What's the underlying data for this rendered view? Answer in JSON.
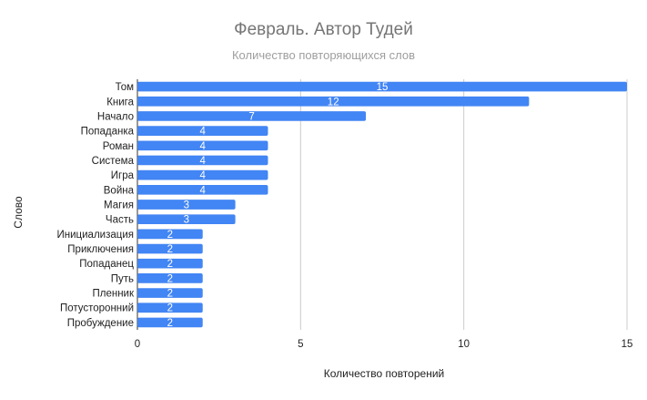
{
  "chart_data": {
    "type": "bar",
    "orientation": "horizontal",
    "title": "Февраль. Автор Тудей",
    "subtitle": "Количество повторяющихся слов",
    "xlabel": "Количество повторений",
    "ylabel": "Слово",
    "categories": [
      "Том",
      "Книга",
      "Начало",
      "Попаданка",
      "Роман",
      "Система",
      "Игра",
      "Война",
      "Магия",
      "Часть",
      "Инициализация",
      "Приключения",
      "Попаданец",
      "Путь",
      "Пленник",
      "Потусторонний",
      "Пробуждение"
    ],
    "values": [
      15,
      12,
      7,
      4,
      4,
      4,
      4,
      4,
      3,
      3,
      2,
      2,
      2,
      2,
      2,
      2,
      2
    ],
    "xlim": [
      0,
      15
    ],
    "xticks": [
      0,
      5,
      10,
      15
    ],
    "bar_color": "#4285f4",
    "grid": true
  }
}
